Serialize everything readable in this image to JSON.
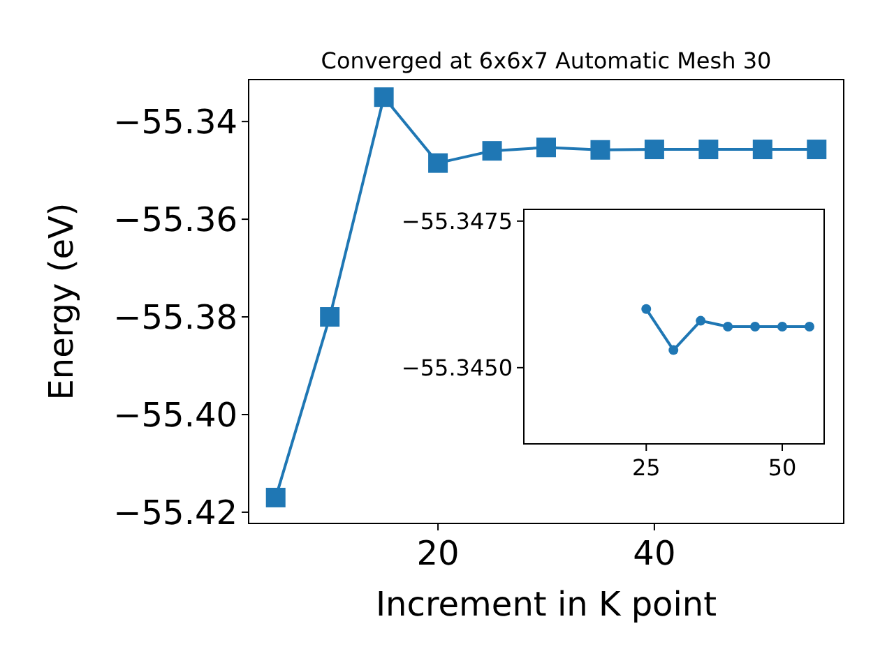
{
  "chart_data": [
    {
      "type": "line",
      "title": "Converged at 6x6x7 Automatic Mesh 30",
      "xlabel": "Increment in K point",
      "ylabel": "Energy (eV)",
      "marker": "square",
      "line_style": "solid",
      "grid": false,
      "x": [
        5,
        10,
        15,
        20,
        25,
        30,
        35,
        40,
        45,
        50,
        55
      ],
      "series": [
        {
          "color": "#1f77b4",
          "values": [
            -55.417,
            -55.38,
            -55.335,
            -55.3485,
            -55.346,
            -55.3453,
            -55.3458,
            -55.3457,
            -55.3457,
            -55.3457,
            -55.3457
          ]
        }
      ],
      "xlim": [
        2.5,
        57.5
      ],
      "xticks": [
        20,
        40
      ],
      "ylim": [
        -55.4223,
        -55.3314
      ],
      "yticks": [
        {
          "value": -55.42,
          "label": "−55.42"
        },
        {
          "value": -55.4,
          "label": "−55.40"
        },
        {
          "value": -55.38,
          "label": "−55.38"
        },
        {
          "value": -55.36,
          "label": "−55.36"
        },
        {
          "value": -55.34,
          "label": "−55.34"
        }
      ]
    },
    {
      "type": "line",
      "marker": "circle",
      "line_style": "solid",
      "grid": false,
      "x": [
        25,
        30,
        35,
        40,
        45,
        50,
        55
      ],
      "series": [
        {
          "color": "#1f77b4",
          "values": [
            -55.346,
            -55.3453,
            -55.3458,
            -55.3457,
            -55.3457,
            -55.3457,
            -55.3457
          ]
        }
      ],
      "xlim": [
        2.5,
        57.7
      ],
      "xticks": [
        25,
        50
      ],
      "ylim": [
        -55.3437,
        -55.3477
      ],
      "yticks": [
        {
          "value": -55.345,
          "label": "−55.3450"
        },
        {
          "value": -55.3475,
          "label": "−55.3475"
        }
      ]
    }
  ]
}
